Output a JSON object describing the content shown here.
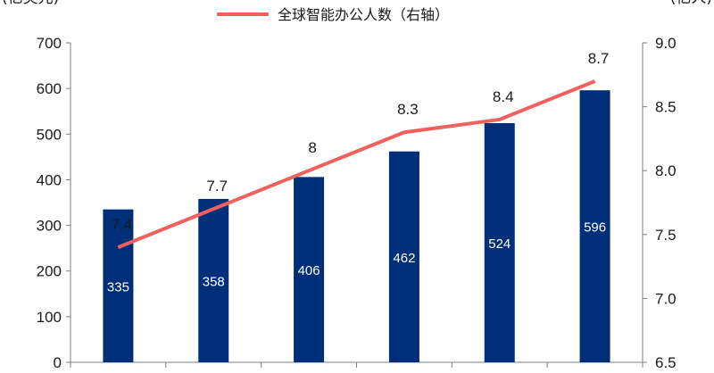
{
  "chart_data": {
    "type": "bar",
    "categories": [
      "",
      "",
      "",
      "",
      "",
      ""
    ],
    "left_axis": {
      "unit_label": "(亿美元)",
      "ylim": [
        0,
        700
      ],
      "ticks": [
        "0",
        "100",
        "200",
        "300",
        "400",
        "500",
        "600",
        "700"
      ]
    },
    "right_axis": {
      "unit_label": "(亿人)",
      "ylim": [
        6.5,
        9.0
      ],
      "ticks": [
        "6.5",
        "7.0",
        "7.5",
        "8.0",
        "8.5",
        "9.0"
      ]
    },
    "series": [
      {
        "type": "bar",
        "axis": "left",
        "values": [
          335,
          358,
          406,
          462,
          524,
          596
        ],
        "labels": [
          "335",
          "358",
          "406",
          "462",
          "524",
          "596"
        ],
        "color": "#002F7A"
      },
      {
        "type": "line",
        "axis": "right",
        "name": "全球智能办公人数（右轴）",
        "values": [
          7.4,
          7.7,
          8.0,
          8.3,
          8.4,
          8.7
        ],
        "labels": [
          "7.4",
          "7.7",
          "8",
          "8.3",
          "8.4",
          "8.7"
        ],
        "color": "#F0605D"
      }
    ],
    "legend": {
      "position": "top-center"
    },
    "grid": false
  }
}
